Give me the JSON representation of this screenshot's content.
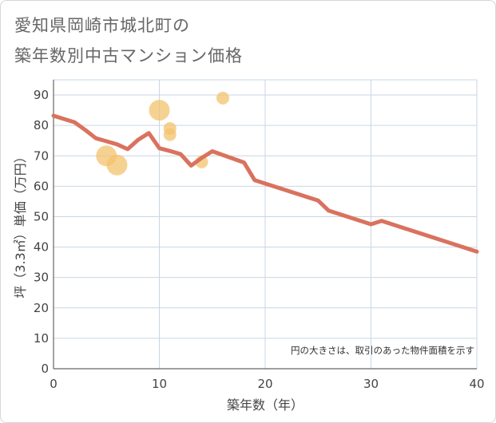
{
  "title_line1": "愛知県岡崎市城北町の",
  "title_line2": "築年数別中古マンション価格",
  "chart_data": {
    "type": "scatter",
    "xlabel": "築年数（年）",
    "ylabel": "坪（3.3㎡）単価（万円）",
    "xlim": [
      0,
      40
    ],
    "ylim": [
      0,
      95
    ],
    "xticks": [
      0,
      10,
      20,
      30,
      40
    ],
    "yticks": [
      0,
      10,
      20,
      30,
      40,
      50,
      60,
      70,
      80,
      90
    ],
    "grid": true,
    "note": "円の大きさは、取引のあった物件面積を示す",
    "colors": {
      "points": "#f3c36d",
      "line": "#d9725e",
      "grid": "#c9d6e3"
    },
    "points": [
      {
        "x": 5,
        "y": 70,
        "size": 3
      },
      {
        "x": 6,
        "y": 67,
        "size": 3
      },
      {
        "x": 10,
        "y": 85,
        "size": 3
      },
      {
        "x": 11,
        "y": 79,
        "size": 1
      },
      {
        "x": 11,
        "y": 77,
        "size": 1
      },
      {
        "x": 14,
        "y": 68,
        "size": 1
      },
      {
        "x": 16,
        "y": 89,
        "size": 1
      }
    ],
    "line": [
      {
        "x": 0,
        "y": 83.2
      },
      {
        "x": 2,
        "y": 81.0
      },
      {
        "x": 3,
        "y": 78.5
      },
      {
        "x": 4,
        "y": 75.8
      },
      {
        "x": 5,
        "y": 74.8
      },
      {
        "x": 6,
        "y": 73.8
      },
      {
        "x": 7,
        "y": 72.2
      },
      {
        "x": 8,
        "y": 75.3
      },
      {
        "x": 9,
        "y": 77.5
      },
      {
        "x": 10,
        "y": 72.5
      },
      {
        "x": 11,
        "y": 71.6
      },
      {
        "x": 12,
        "y": 70.6
      },
      {
        "x": 13,
        "y": 66.8
      },
      {
        "x": 14,
        "y": 69.3
      },
      {
        "x": 15,
        "y": 71.5
      },
      {
        "x": 18,
        "y": 67.8
      },
      {
        "x": 19,
        "y": 62.0
      },
      {
        "x": 25,
        "y": 55.3
      },
      {
        "x": 26,
        "y": 52.0
      },
      {
        "x": 30,
        "y": 47.5
      },
      {
        "x": 31,
        "y": 48.6
      },
      {
        "x": 40,
        "y": 38.5
      }
    ]
  }
}
